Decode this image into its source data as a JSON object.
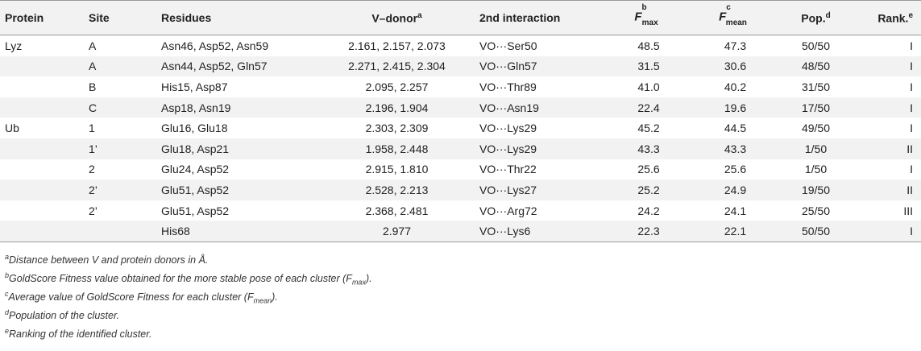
{
  "headers": {
    "protein": "Protein",
    "site": "Site",
    "residues": "Residues",
    "v_donor": "V–donor",
    "v_donor_sup": "a",
    "second": "2nd interaction",
    "fmax_F": "F",
    "fmax_sup": "b",
    "fmax_sub": "max",
    "fmean_F": "F",
    "fmean_sup": "c",
    "fmean_sub": "mean",
    "pop": "Pop.",
    "pop_sup": "d",
    "rank": "Rank.",
    "rank_sup": "e"
  },
  "rows": [
    {
      "protein": "Lyz",
      "site": "A",
      "residues": "Asn46, Asp52, Asn59",
      "vdonor": "2.161, 2.157, 2.073",
      "second": "VO···Ser50",
      "fmax": "48.5",
      "fmean": "47.3",
      "pop": "50/50",
      "rank": "I"
    },
    {
      "protein": "",
      "site": "A",
      "residues": "Asn44, Asp52, Gln57",
      "vdonor": "2.271, 2.415, 2.304",
      "second": "VO···Gln57",
      "fmax": "31.5",
      "fmean": "30.6",
      "pop": "48/50",
      "rank": "I"
    },
    {
      "protein": "",
      "site": "B",
      "residues": "His15, Asp87",
      "vdonor": "2.095, 2.257",
      "second": "VO···Thr89",
      "fmax": "41.0",
      "fmean": "40.2",
      "pop": "31/50",
      "rank": "I"
    },
    {
      "protein": "",
      "site": "C",
      "residues": "Asp18, Asn19",
      "vdonor": "2.196, 1.904",
      "second": "VO···Asn19",
      "fmax": "22.4",
      "fmean": "19.6",
      "pop": "17/50",
      "rank": "I"
    },
    {
      "protein": "Ub",
      "site": "1",
      "residues": "Glu16, Glu18",
      "vdonor": "2.303, 2.309",
      "second": "VO···Lys29",
      "fmax": "45.2",
      "fmean": "44.5",
      "pop": "49/50",
      "rank": "I"
    },
    {
      "protein": "",
      "site": "1’",
      "residues": "Glu18, Asp21",
      "vdonor": "1.958, 2.448",
      "second": "VO···Lys29",
      "fmax": "43.3",
      "fmean": "43.3",
      "pop": "1/50",
      "rank": "II"
    },
    {
      "protein": "",
      "site": "2",
      "residues": "Glu24, Asp52",
      "vdonor": "2.915, 1.810",
      "second": "VO···Thr22",
      "fmax": "25.6",
      "fmean": "25.6",
      "pop": "1/50",
      "rank": "I"
    },
    {
      "protein": "",
      "site": "2’",
      "residues": "Glu51, Asp52",
      "vdonor": "2.528, 2.213",
      "second": "VO···Lys27",
      "fmax": "25.2",
      "fmean": "24.9",
      "pop": "19/50",
      "rank": "II"
    },
    {
      "protein": "",
      "site": "2’",
      "residues": "Glu51, Asp52",
      "vdonor": "2.368, 2.481",
      "second": "VO···Arg72",
      "fmax": "24.2",
      "fmean": "24.1",
      "pop": "25/50",
      "rank": "III"
    },
    {
      "protein": "",
      "site": "",
      "residues": "His68",
      "vdonor": "2.977",
      "second": "VO···Lys6",
      "fmax": "22.3",
      "fmean": "22.1",
      "pop": "50/50",
      "rank": "I"
    }
  ],
  "footnotes": {
    "a": {
      "mark": "a",
      "text": "Distance between V and protein donors in Å."
    },
    "b": {
      "mark": "b",
      "text": "GoldScore Fitness value obtained for the more stable pose of each cluster (F",
      "sub": "max",
      "tail": ")."
    },
    "c": {
      "mark": "c",
      "text": "Average value of GoldScore Fitness for each cluster (F",
      "sub": "mean",
      "tail": ")."
    },
    "d": {
      "mark": "d",
      "text": "Population of the cluster."
    },
    "e": {
      "mark": "e",
      "text": "Ranking of the identified cluster."
    }
  }
}
